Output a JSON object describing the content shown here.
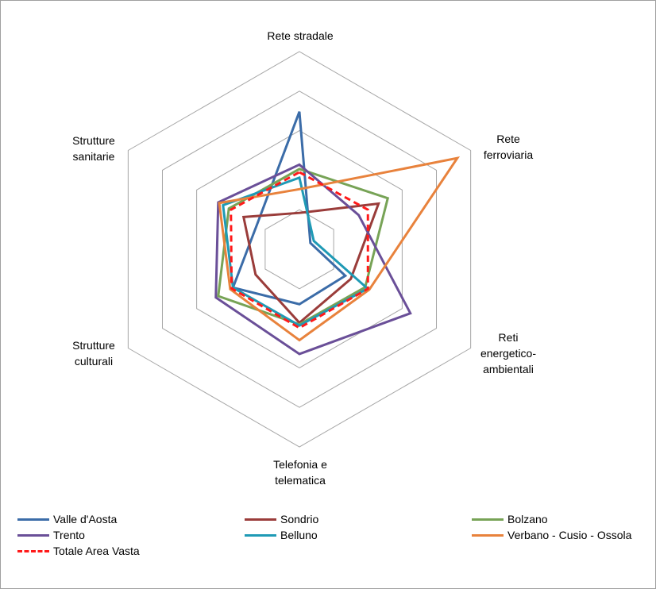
{
  "chart_data": {
    "type": "radar",
    "axes": [
      "Rete stradale",
      "Rete ferroviaria",
      "Reti energetico-ambientali",
      "Telefonia e telematica",
      "Strutture culturali",
      "Strutture sanitarie"
    ],
    "axis_labels_display": [
      "Rete stradale",
      "Rete\nferroviaria",
      "Reti\nenergetico-\nambientali",
      "Telefonia e\ntelematica",
      "Strutture\nculturali",
      "Strutture\nsanitarie"
    ],
    "range": [
      0,
      5
    ],
    "gridlines": [
      1,
      3,
      4,
      5
    ],
    "legend_position": "bottom",
    "series": [
      {
        "name": "Valle d'Aosta",
        "color": "#3b6ca8",
        "dash": false,
        "values": [
          3.48,
          0.32,
          1.34,
          1.39,
          1.94,
          1.24
        ]
      },
      {
        "name": "Sondrio",
        "color": "#9a3c3a",
        "dash": false,
        "values": [
          0.92,
          2.31,
          1.5,
          1.86,
          1.28,
          1.63
        ]
      },
      {
        "name": "Bolzano",
        "color": "#77a356",
        "dash": false,
        "values": [
          2.03,
          2.58,
          1.92,
          1.9,
          2.37,
          2.06
        ]
      },
      {
        "name": "Trento",
        "color": "#6a4f98",
        "dash": false,
        "values": [
          2.14,
          1.73,
          3.24,
          2.65,
          2.44,
          2.37
        ]
      },
      {
        "name": "Belluno",
        "color": "#1f9ab5",
        "dash": false,
        "values": [
          1.81,
          0.42,
          1.99,
          1.93,
          1.94,
          2.23
        ]
      },
      {
        "name": "Verbano - Cusio - Ossola",
        "color": "#e8823c",
        "dash": false,
        "values": [
          1.52,
          4.61,
          2.04,
          2.3,
          2.02,
          2.34
        ]
      },
      {
        "name": "Totale Area Vasta",
        "color": "#ff1a1a",
        "dash": true,
        "values": [
          1.95,
          2.0,
          2.0,
          1.99,
          1.98,
          2.0
        ]
      }
    ]
  }
}
